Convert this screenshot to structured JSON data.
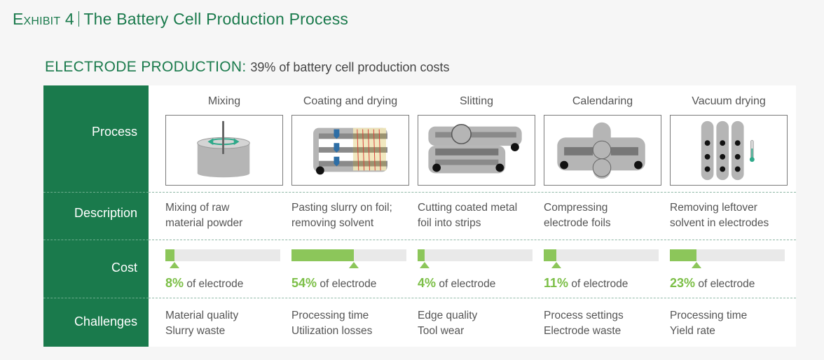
{
  "exhibit": {
    "label": "Exhibit 4",
    "title": "The Battery Cell Production Process"
  },
  "section": {
    "heading": "ELECTRODE PRODUCTION:",
    "subheading": "39% of battery cell production costs"
  },
  "row_labels": {
    "process": "Process",
    "description": "Description",
    "cost": "Cost",
    "challenges": "Challenges"
  },
  "colors": {
    "brand_green": "#1a7a4c",
    "cost_green": "#8cc65a",
    "illustration_gray": "#b5b5b5",
    "arrow_teal": "#2fa98a"
  },
  "steps": [
    {
      "title": "Mixing",
      "icon": "mixing-tank-icon",
      "description": [
        "Mixing of raw",
        "material powder"
      ],
      "cost_pct": "8%",
      "cost_value": 8,
      "cost_suffix": "of electrode",
      "challenges": [
        "Material quality",
        "Slurry waste"
      ]
    },
    {
      "title": "Coating and drying",
      "icon": "coating-machine-icon",
      "description": [
        "Pasting slurry on foil;",
        "removing solvent"
      ],
      "cost_pct": "54%",
      "cost_value": 54,
      "cost_suffix": "of electrode",
      "challenges": [
        "Processing time",
        "Utilization losses"
      ]
    },
    {
      "title": "Slitting",
      "icon": "slitting-machine-icon",
      "description": [
        "Cutting coated metal",
        "foil into strips"
      ],
      "cost_pct": "4%",
      "cost_value": 4,
      "cost_suffix": "of electrode",
      "challenges": [
        "Edge quality",
        "Tool wear"
      ]
    },
    {
      "title": "Calendaring",
      "icon": "calendaring-rollers-icon",
      "description": [
        "Compressing",
        "electrode foils"
      ],
      "cost_pct": "11%",
      "cost_value": 11,
      "cost_suffix": "of electrode",
      "challenges": [
        "Process settings",
        "Electrode waste"
      ]
    },
    {
      "title": "Vacuum drying",
      "icon": "vacuum-oven-icon",
      "description": [
        "Removing leftover",
        "solvent in electrodes"
      ],
      "cost_pct": "23%",
      "cost_value": 23,
      "cost_suffix": "of electrode",
      "challenges": [
        "Processing time",
        "Yield rate"
      ]
    }
  ]
}
